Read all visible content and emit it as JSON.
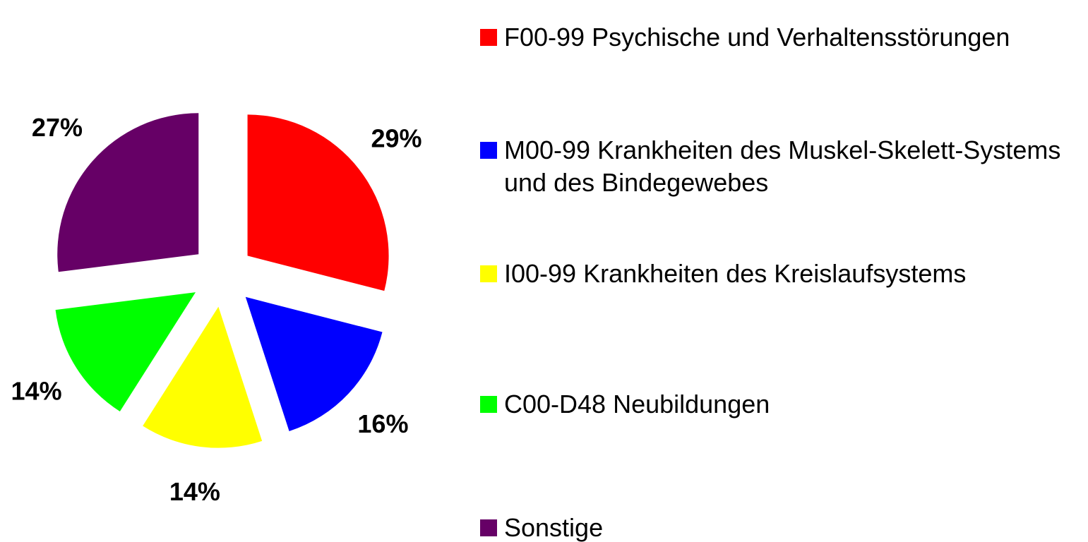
{
  "chart_data": {
    "type": "pie",
    "categories": [
      "F00-99 Psychische und Verhaltensstörungen",
      "M00-99 Krankheiten des Muskel-Skelett-Systems und des Bindegewebes",
      "I00-99 Krankheiten des Kreislaufsystems",
      "C00-D48 Neubildungen",
      "Sonstige"
    ],
    "values": [
      29,
      16,
      14,
      14,
      27
    ],
    "value_labels": [
      "29%",
      "16%",
      "14%",
      "14%",
      "27%"
    ],
    "colors": [
      "#ff0000",
      "#0000ff",
      "#ffff00",
      "#00ff00",
      "#660066"
    ],
    "exploded": true,
    "legend": "right"
  }
}
